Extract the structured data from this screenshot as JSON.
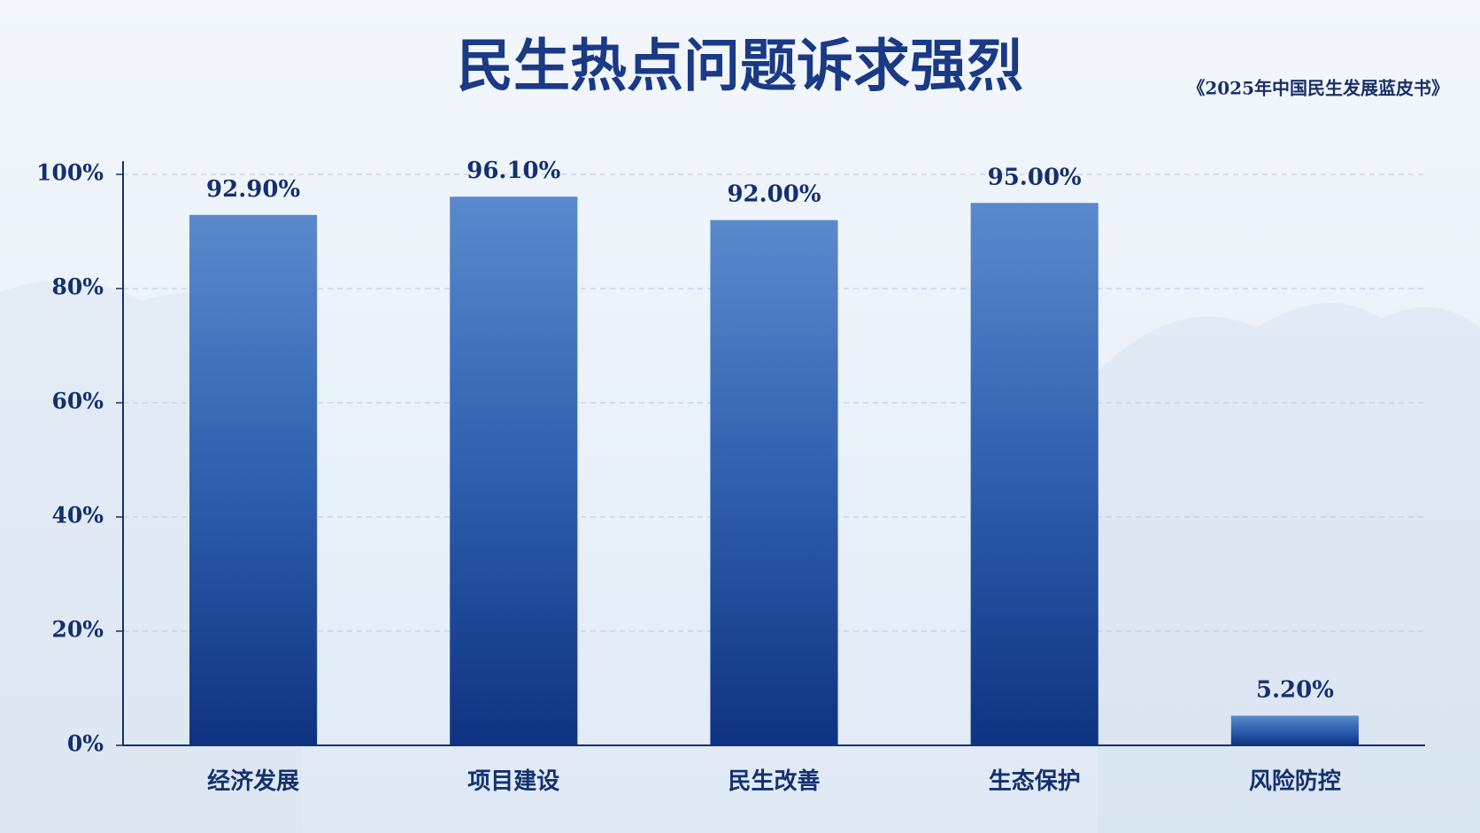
{
  "chart_data": {
    "type": "bar",
    "title": "民生热点问题诉求强烈",
    "source": "《2025年中国民生发展蓝皮书》",
    "categories": [
      "经济发展",
      "项目建设",
      "民生改善",
      "生态保护",
      "风险防控"
    ],
    "values": [
      92.9,
      96.1,
      92.0,
      95.0,
      5.2
    ],
    "value_labels": [
      "92.90%",
      "96.10%",
      "92.00%",
      "95.00%",
      "5.20%"
    ],
    "color": "#2f5fae",
    "ylim": [
      0,
      100
    ],
    "yticks": [
      {
        "value": 0,
        "label": "0%"
      },
      {
        "value": 20,
        "label": "20%"
      },
      {
        "value": 40,
        "label": "40%"
      },
      {
        "value": 60,
        "label": "60%"
      },
      {
        "value": 80,
        "label": "80%"
      },
      {
        "value": 100,
        "label": "100%"
      }
    ],
    "grid": true
  }
}
